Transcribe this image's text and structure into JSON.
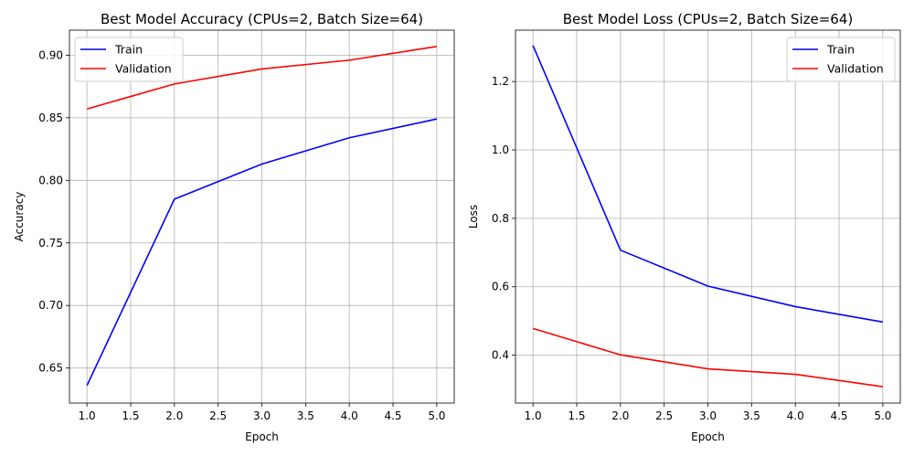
{
  "chart_data": [
    {
      "type": "line",
      "title": "Best Model Accuracy (CPUs=2, Batch Size=64)",
      "xlabel": "Epoch",
      "ylabel": "Accuracy",
      "x": [
        1,
        2,
        3,
        4,
        5
      ],
      "xlim": [
        0.8,
        5.2
      ],
      "ylim": [
        0.622,
        0.92
      ],
      "xticks": [
        "1.0",
        "1.5",
        "2.0",
        "2.5",
        "3.0",
        "3.5",
        "4.0",
        "4.5",
        "5.0"
      ],
      "yticks": [
        "0.65",
        "0.70",
        "0.75",
        "0.80",
        "0.85",
        "0.90"
      ],
      "grid": true,
      "legend": "upper-left",
      "series": [
        {
          "name": "Train",
          "color": "#0000ff",
          "values": [
            0.636,
            0.785,
            0.813,
            0.834,
            0.849
          ]
        },
        {
          "name": "Validation",
          "color": "#ff0000",
          "values": [
            0.857,
            0.877,
            0.889,
            0.896,
            0.907
          ]
        }
      ]
    },
    {
      "type": "line",
      "title": "Best Model Loss (CPUs=2, Batch Size=64)",
      "xlabel": "Epoch",
      "ylabel": "Loss",
      "x": [
        1,
        2,
        3,
        4,
        5
      ],
      "xlim": [
        0.8,
        5.2
      ],
      "ylim": [
        0.26,
        1.35
      ],
      "xticks": [
        "1.0",
        "1.5",
        "2.0",
        "2.5",
        "3.0",
        "3.5",
        "4.0",
        "4.5",
        "5.0"
      ],
      "yticks": [
        "0.4",
        "0.6",
        "0.8",
        "1.0",
        "1.2"
      ],
      "grid": true,
      "legend": "upper-right",
      "series": [
        {
          "name": "Train",
          "color": "#0000ff",
          "values": [
            1.305,
            0.707,
            0.602,
            0.542,
            0.497
          ]
        },
        {
          "name": "Validation",
          "color": "#ff0000",
          "values": [
            0.478,
            0.401,
            0.36,
            0.344,
            0.308
          ]
        }
      ]
    }
  ]
}
